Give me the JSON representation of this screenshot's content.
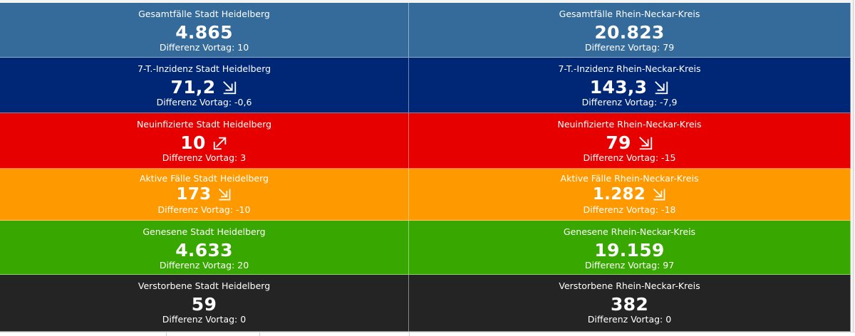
{
  "tiles": [
    {
      "key": "gesamt-heidelberg",
      "title": "Gesamtfälle Stadt Heidelberg",
      "value": "4.865",
      "diff": "Differenz Vortag: 10",
      "trend": null,
      "bg": "#346b9b"
    },
    {
      "key": "gesamt-rnk",
      "title": "Gesamtfälle Rhein-Neckar-Kreis",
      "value": "20.823",
      "diff": "Differenz Vortag: 79",
      "trend": null,
      "bg": "#346b9b"
    },
    {
      "key": "inzidenz-heidelberg",
      "title": "7-T.-Inzidenz Stadt Heidelberg",
      "value": "71,2",
      "diff": "Differenz Vortag: -0,6",
      "trend": "down-right",
      "bg": "#002776"
    },
    {
      "key": "inzidenz-rnk",
      "title": "7-T.-Inzidenz Rhein-Neckar-Kreis",
      "value": "143,3",
      "diff": "Differenz Vortag: -7,9",
      "trend": "down-right",
      "bg": "#002776"
    },
    {
      "key": "neuinfizierte-heidelberg",
      "title": "Neuinfizierte Stadt Heidelberg",
      "value": "10",
      "diff": "Differenz Vortag: 3",
      "trend": "up-right",
      "bg": "#e60000"
    },
    {
      "key": "neuinfizierte-rnk",
      "title": "Neuinfizierte Rhein-Neckar-Kreis",
      "value": "79",
      "diff": "Differenz Vortag: -15",
      "trend": "down-right",
      "bg": "#e60000"
    },
    {
      "key": "aktive-heidelberg",
      "title": "Aktive Fälle Stadt Heidelberg",
      "value": "173",
      "diff": "Differenz Vortag: -10",
      "trend": "down-right",
      "bg": "#ff9900"
    },
    {
      "key": "aktive-rnk",
      "title": "Aktive Fälle Rhein-Neckar-Kreis",
      "value": "1.282",
      "diff": "Differenz Vortag: -18",
      "trend": "down-right",
      "bg": "#ff9900"
    },
    {
      "key": "genesene-heidelberg",
      "title": "Genesene Stadt Heidelberg",
      "value": "4.633",
      "diff": "Differenz Vortag: 20",
      "trend": null,
      "bg": "#38a800"
    },
    {
      "key": "genesene-rnk",
      "title": "Genesene Rhein-Neckar-Kreis",
      "value": "19.159",
      "diff": "Differenz Vortag: 97",
      "trend": null,
      "bg": "#38a800"
    },
    {
      "key": "verstorbene-heidelberg",
      "title": "Verstorbene Stadt Heidelberg",
      "value": "59",
      "diff": "Differenz Vortag: 0",
      "trend": null,
      "bg": "#242424"
    },
    {
      "key": "verstorbene-rnk",
      "title": "Verstorbene Rhein-Neckar-Kreis",
      "value": "382",
      "diff": "Differenz Vortag: 0",
      "trend": null,
      "bg": "#242424"
    }
  ],
  "trend_icons": {
    "down-right": "arrow-down-right-icon",
    "up-right": "arrow-up-right-icon"
  }
}
